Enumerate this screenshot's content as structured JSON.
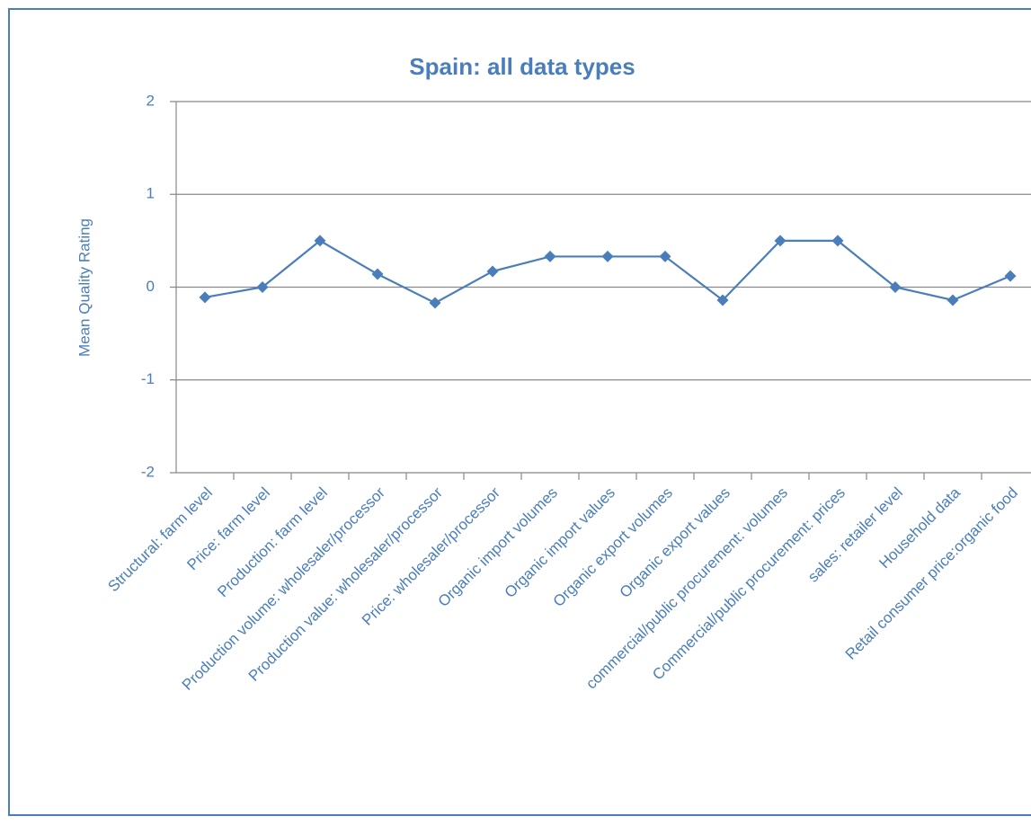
{
  "chart_data": {
    "type": "line",
    "title": "Spain: all data types",
    "y_label": "Mean Quality Rating",
    "categories": [
      "Structural: farm level",
      "Price: farm level",
      "Production: farm level",
      "Production volume: wholesaler/processor",
      "Production value: wholesaler/processor",
      "Price: wholesaler/processor",
      "Organic import volumes",
      "Organic import values",
      "Organic export volumes",
      "Organic export values",
      "commercial/public procurement: volumes",
      "Commercial/public procurement: prices",
      "sales: retailer level",
      "Household data",
      "Retail consumer price:organic food"
    ],
    "series": [
      {
        "name": "Spain",
        "color": "#4a7ebb",
        "values": [
          -0.11,
          0,
          0.5,
          0.14,
          -0.17,
          0.17,
          0.33,
          0.33,
          0.33,
          -0.14,
          0.5,
          0.5,
          0,
          -0.14,
          0.12
        ]
      }
    ],
    "ylim": [
      -2,
      2
    ],
    "yticks": [
      -2,
      -1,
      0,
      1,
      2
    ],
    "grid": true
  }
}
